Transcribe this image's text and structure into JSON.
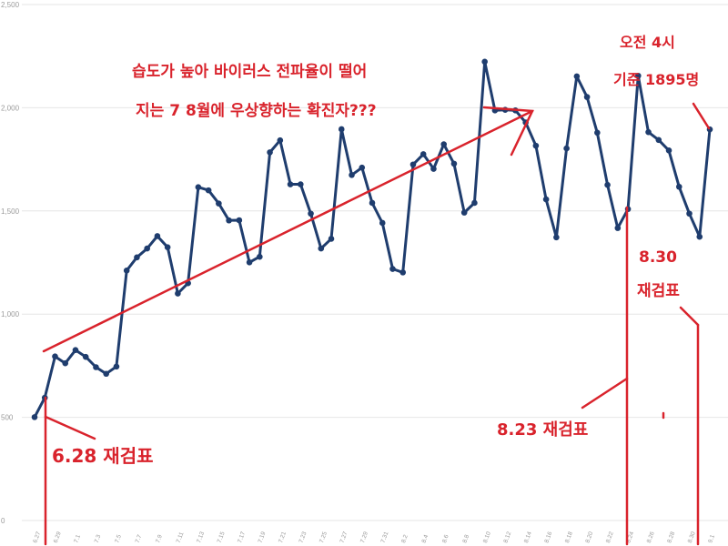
{
  "chart_data": {
    "type": "line",
    "ylim": [
      0,
      2500
    ],
    "yticks": [
      0,
      500,
      1000,
      1500,
      2000,
      2500
    ],
    "ytick_labels": [
      "0",
      "500",
      "1,000",
      "1,500",
      "2,000",
      "2,500"
    ],
    "grid": true,
    "x_tick_labels": [
      "6.27",
      "6.29",
      "7.1",
      "7.3",
      "7.5",
      "7.7",
      "7.9",
      "7.11",
      "7.13",
      "7.15",
      "7.17",
      "7.19",
      "7.21",
      "7.23",
      "7.25",
      "7.27",
      "7.29",
      "7.31",
      "8.2",
      "8.4",
      "8.6",
      "8.8",
      "8.10",
      "8.12",
      "8.14",
      "8.16",
      "8.18",
      "8.20",
      "8.22",
      "8.24",
      "8.26",
      "8.28",
      "8.30",
      "9.1"
    ],
    "series": [
      {
        "color": "#1f3d6e",
        "values": [
          501,
          595,
          795,
          762,
          826,
          793,
          743,
          711,
          746,
          1211,
          1275,
          1318,
          1378,
          1324,
          1100,
          1150,
          1615,
          1600,
          1536,
          1454,
          1455,
          1251,
          1278,
          1784,
          1842,
          1629,
          1629,
          1487,
          1318,
          1365,
          1896,
          1674,
          1710,
          1539,
          1442,
          1219,
          1202,
          1725,
          1775,
          1704,
          1823,
          1729,
          1492,
          1539,
          2223,
          1987,
          1990,
          1987,
          1929,
          1816,
          1556,
          1372,
          1803,
          2152,
          2052,
          1879,
          1626,
          1417,
          1509,
          2155,
          1882,
          1844,
          1793,
          1617,
          1487,
          1375,
          1895
        ]
      }
    ],
    "annotations": {
      "main_line1": "습도가 높아 바이러스 전파율이 떨어",
      "main_line2": "지는 7 8월에 우상향하는 확진자???",
      "time_line1": "오전 4시",
      "time_line2": "기준 1895명",
      "retest_0628": "6.28 재검표",
      "retest_0823": "8.23 재검표",
      "retest_0830_date": "8.30",
      "retest_0830_label": "재검표"
    },
    "accent_color": "#d9232c"
  }
}
